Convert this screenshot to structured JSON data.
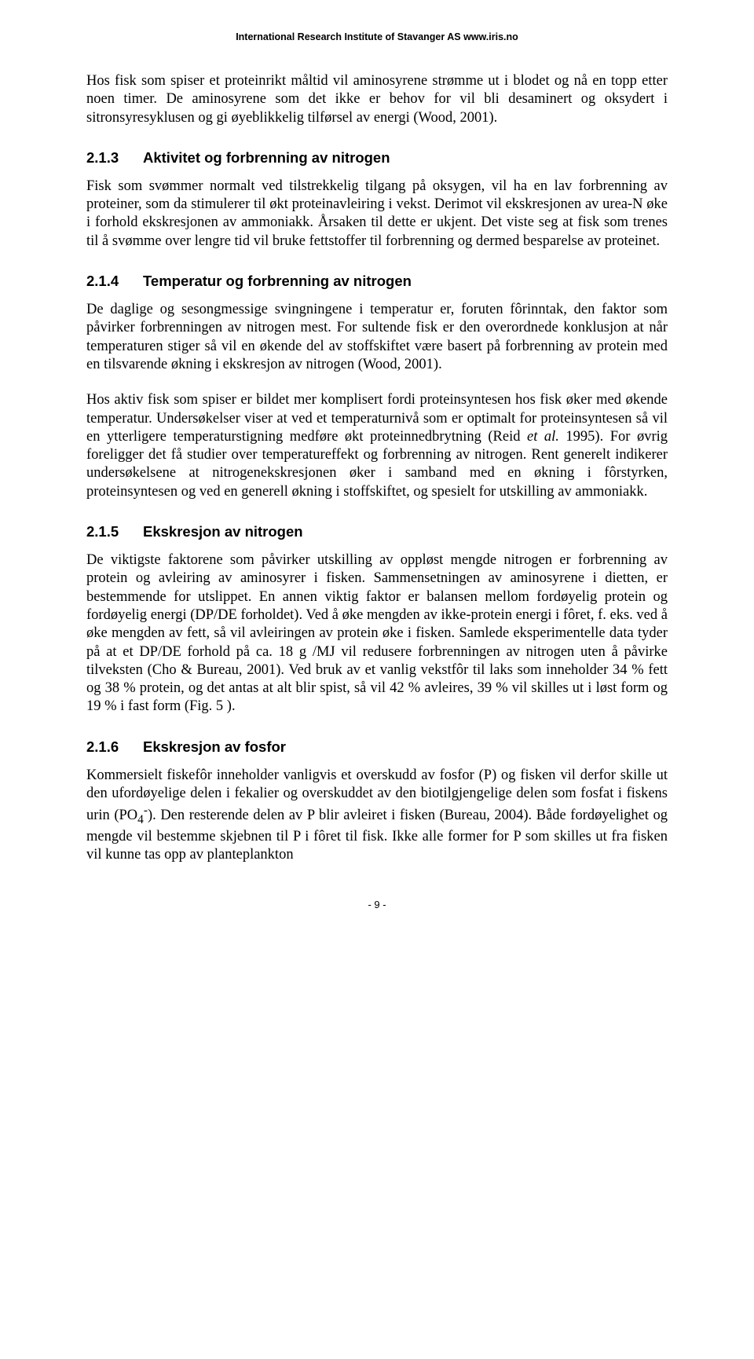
{
  "header": "International Research Institute of Stavanger AS     www.iris.no",
  "paragraphs": {
    "p1": "Hos fisk som spiser et proteinrikt måltid vil aminosyrene strømme ut i blodet og nå en topp etter noen timer. De aminosyrene som det ikke er behov for vil bli desaminert og oksydert i sitronsyresyklusen og gi øyeblikkelig tilførsel av energi (Wood, 2001).",
    "p2": "Fisk som svømmer normalt ved tilstrekkelig tilgang på oksygen, vil ha en lav forbrenning av proteiner, som da stimulerer til økt proteinavleiring i vekst. Derimot vil ekskresjonen av urea-N øke i forhold ekskresjonen av ammoniakk. Årsaken til dette er ukjent. Det viste seg at fisk som trenes til å svømme over lengre tid vil bruke fettstoffer til forbrenning og dermed besparelse av proteinet.",
    "p3": "De daglige og sesongmessige svingningene i temperatur er, foruten fôrinntak, den faktor som påvirker forbrenningen av nitrogen mest. For sultende fisk er den overordnede konklusjon at når temperaturen stiger så vil en økende del av stoffskiftet være basert på forbrenning av protein med en tilsvarende økning i ekskresjon av nitrogen (Wood, 2001).",
    "p4_a": "Hos aktiv fisk som spiser er bildet mer komplisert fordi proteinsyntesen hos fisk øker med økende temperatur. Undersøkelser viser at ved et temperaturnivå som er optimalt for proteinsyntesen så vil en ytterligere temperaturstigning medføre økt proteinnedbrytning (Reid ",
    "p4_i": "et al.",
    "p4_b": " 1995). For øvrig foreligger det få studier over temperatureffekt og forbrenning av nitrogen. Rent generelt indikerer undersøkelsene at nitrogenekskresjonen øker i samband med en økning i fôrstyrken, proteinsyntesen og ved en generell økning i stoffskiftet, og spesielt for utskilling av ammoniakk.",
    "p5": "De viktigste faktorene som påvirker utskilling av oppløst mengde nitrogen er forbrenning av protein og avleiring av aminosyrer i fisken. Sammensetningen av aminosyrene i dietten, er bestemmende for utslippet. En annen viktig faktor er balansen mellom fordøyelig protein og fordøyelig energi (DP/DE forholdet). Ved å øke mengden av ikke-protein energi i fôret, f. eks.  ved å øke mengden av fett, så vil avleiringen av protein øke i fisken. Samlede eksperimentelle data tyder på at et DP/DE forhold på ca.  18 g /MJ  vil redusere forbrenningen av nitrogen uten å påvirke tilveksten (Cho & Bureau, 2001). Ved bruk av et vanlig vekstfôr til laks som inneholder 34 % fett og 38 % protein, og det antas at alt blir spist, så vil 42 % avleires, 39 % vil skilles ut i løst form og 19 % i fast form (Fig. 5 ).",
    "p6_a": "Kommersielt fiskefôr inneholder vanligvis et overskudd av fosfor (P) og fisken vil derfor skille ut den ufordøyelige delen i fekalier og overskuddet av den biotilgjengelige delen som fosfat i fiskens urin (PO",
    "p6_sub": "4",
    "p6_sup": "-",
    "p6_b": "). Den resterende delen av P blir avleiret i fisken (Bureau, 2004). Både fordøyelighet og mengde vil bestemme skjebnen til P i fôret til fisk. Ikke alle former for P som skilles ut fra fisken vil kunne tas opp av planteplankton"
  },
  "headings": {
    "h1_num": "2.1.3",
    "h1_text": "Aktivitet og forbrenning av nitrogen",
    "h2_num": "2.1.4",
    "h2_text": "Temperatur og forbrenning av nitrogen",
    "h3_num": "2.1.5",
    "h3_text": "Ekskresjon av nitrogen",
    "h4_num": "2.1.6",
    "h4_text": "Ekskresjon av fosfor"
  },
  "footer": "- 9 -"
}
